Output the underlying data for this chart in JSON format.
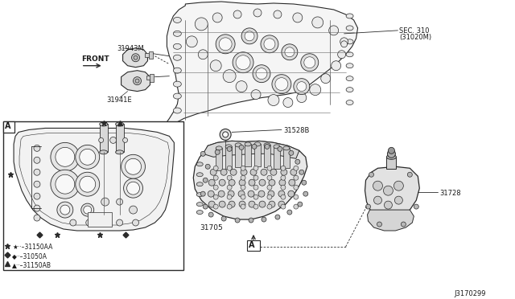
{
  "background_color": "#ffffff",
  "line_color": "#2a2a2a",
  "text_color": "#1a1a1a",
  "fig_width": 6.4,
  "fig_height": 3.72,
  "dpi": 100,
  "labels": {
    "front": "FRONT",
    "sec310_line1": "SEC. 310",
    "sec310_line2": "(31020M)",
    "part_31943M": "31943M",
    "part_31941E": "31941E",
    "part_31528B": "31528B",
    "part_31705": "31705",
    "part_31728": "31728",
    "legend_star": "★––31150AA",
    "legend_diamond": "◆––31050A",
    "legend_triangle": "▲––31150AB",
    "ref_A": "A",
    "diagram_id": "J3170299"
  }
}
